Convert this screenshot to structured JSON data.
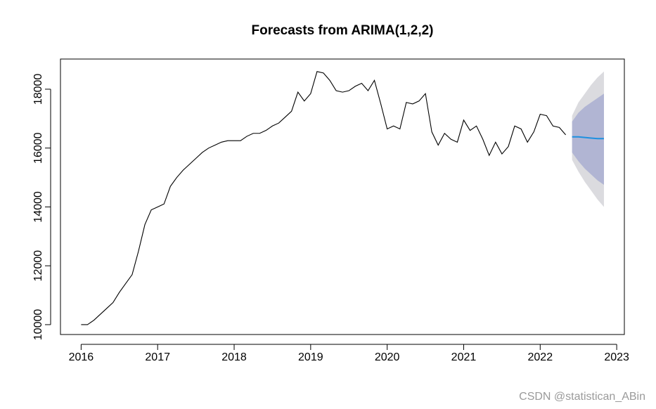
{
  "chart_data": {
    "type": "forecast",
    "title": "Forecasts from ARIMA(1,2,2)",
    "watermark": "CSDN @statistican_ABin",
    "xlim": [
      2015.73,
      2023.1
    ],
    "ylim": [
      9665,
      19025
    ],
    "xticks": [
      2016,
      2017,
      2018,
      2019,
      2020,
      2021,
      2022,
      2023
    ],
    "yticks": [
      10000,
      12000,
      14000,
      16000,
      18000
    ],
    "observed": {
      "color": "#000000",
      "x": [
        2016,
        2016.0833,
        2016.1667,
        2016.25,
        2016.3333,
        2016.4167,
        2016.5,
        2016.5833,
        2016.6667,
        2016.75,
        2016.8333,
        2016.9167,
        2017,
        2017.0833,
        2017.1667,
        2017.25,
        2017.3333,
        2017.4167,
        2017.5,
        2017.5833,
        2017.6667,
        2017.75,
        2017.8333,
        2017.9167,
        2018,
        2018.0833,
        2018.1667,
        2018.25,
        2018.3333,
        2018.4167,
        2018.5,
        2018.5833,
        2018.6667,
        2018.75,
        2018.8333,
        2018.9167,
        2019,
        2019.0833,
        2019.1667,
        2019.25,
        2019.3333,
        2019.4167,
        2019.5,
        2019.5833,
        2019.6667,
        2019.75,
        2019.8333,
        2019.9167,
        2020,
        2020.0833,
        2020.1667,
        2020.25,
        2020.3333,
        2020.4167,
        2020.5,
        2020.5833,
        2020.6667,
        2020.75,
        2020.8333,
        2020.9167,
        2021,
        2021.0833,
        2021.1667,
        2021.25,
        2021.3333,
        2021.4167,
        2021.5,
        2021.5833,
        2021.6667,
        2021.75,
        2021.8333,
        2021.9167,
        2022,
        2022.0833,
        2022.1667,
        2022.25,
        2022.3333
      ],
      "values": [
        10000,
        10000,
        10150,
        10350,
        10550,
        10750,
        11100,
        11400,
        11700,
        12500,
        13400,
        13900,
        14000,
        14100,
        14700,
        15000,
        15250,
        15450,
        15650,
        15850,
        16000,
        16100,
        16200,
        16250,
        16250,
        16250,
        16400,
        16500,
        16500,
        16600,
        16750,
        16850,
        17050,
        17250,
        17900,
        17600,
        17850,
        18600,
        18550,
        18300,
        17950,
        17900,
        17950,
        18100,
        18200,
        17950,
        18300,
        17500,
        16650,
        16750,
        16650,
        17550,
        17500,
        17600,
        17850,
        16550,
        16100,
        16500,
        16300,
        16200,
        16950,
        16600,
        16750,
        16300,
        15750,
        16200,
        15800,
        16050,
        16750,
        16650,
        16200,
        16550,
        17150,
        17100,
        16750,
        16700,
        16450
      ]
    },
    "forecast": {
      "x": [
        2022.4167,
        2022.5,
        2022.5833,
        2022.6667,
        2022.75,
        2022.8333
      ],
      "mean": [
        16380,
        16380,
        16360,
        16340,
        16320,
        16320
      ],
      "mean_color": "#1e90e0",
      "lo80": [
        15850,
        15550,
        15300,
        15100,
        14900,
        14750
      ],
      "hi80": [
        16900,
        17200,
        17400,
        17550,
        17700,
        17850
      ],
      "color80": "#b1b5d3",
      "lo95": [
        15600,
        15200,
        14850,
        14550,
        14250,
        14000
      ],
      "hi95": [
        17100,
        17550,
        17850,
        18150,
        18400,
        18600
      ],
      "color95": "#dbdbdf"
    }
  }
}
